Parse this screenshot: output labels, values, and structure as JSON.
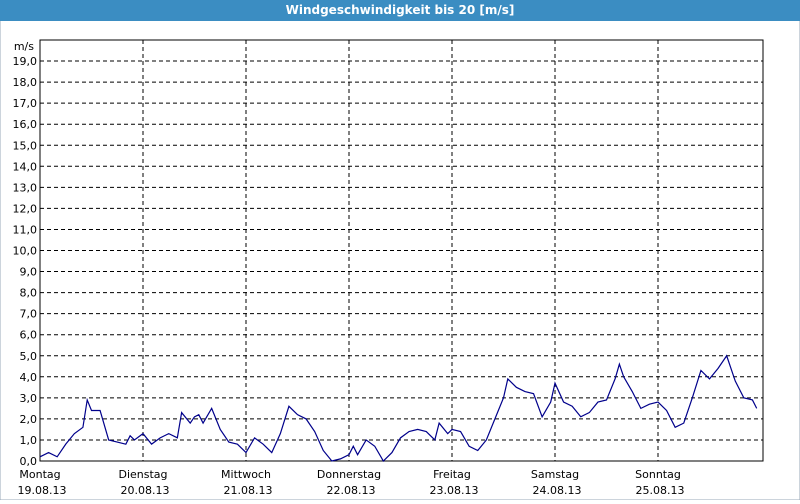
{
  "chart_data": {
    "type": "line",
    "title": "Windgeschwindigkeit bis 20 [m/s]",
    "y_unit": "m/s",
    "xlim": [
      0,
      168
    ],
    "xticks": [
      {
        "value": 0,
        "label": "Montag"
      },
      {
        "value": 24,
        "label": "Dienstag"
      },
      {
        "value": 48,
        "label": "Mittwoch"
      },
      {
        "value": 72,
        "label": "Donnerstag"
      },
      {
        "value": 96,
        "label": "Freitag"
      },
      {
        "value": 120,
        "label": "Samstag"
      },
      {
        "value": 144,
        "label": "Sonntag"
      }
    ],
    "xtick_dates": [
      "19.08.13",
      "20.08.13",
      "21.08.13",
      "22.08.13",
      "23.08.13",
      "24.08.13",
      "25.08.13"
    ],
    "ylim": [
      0,
      20
    ],
    "yticks": [
      {
        "value": 0,
        "label": "0,0"
      },
      {
        "value": 1,
        "label": "1,0"
      },
      {
        "value": 2,
        "label": "2,0"
      },
      {
        "value": 3,
        "label": "3,0"
      },
      {
        "value": 4,
        "label": "4,0"
      },
      {
        "value": 5,
        "label": "5,0"
      },
      {
        "value": 6,
        "label": "6,0"
      },
      {
        "value": 7,
        "label": "7,0"
      },
      {
        "value": 8,
        "label": "8,0"
      },
      {
        "value": 9,
        "label": "9,0"
      },
      {
        "value": 10,
        "label": "10,0"
      },
      {
        "value": 11,
        "label": "11,0"
      },
      {
        "value": 12,
        "label": "12,0"
      },
      {
        "value": 13,
        "label": "13,0"
      },
      {
        "value": 14,
        "label": "14,0"
      },
      {
        "value": 15,
        "label": "15,0"
      },
      {
        "value": 16,
        "label": "16,0"
      },
      {
        "value": 17,
        "label": "17,0"
      },
      {
        "value": 18,
        "label": "18,0"
      },
      {
        "value": 19,
        "label": "19,0"
      }
    ],
    "grid": true,
    "color": "#00008b",
    "x": [
      0,
      2,
      4,
      6,
      8,
      10,
      11,
      12,
      14,
      16,
      18,
      20,
      21,
      22,
      24,
      26,
      28,
      30,
      32,
      33,
      35,
      36,
      37,
      38,
      40,
      42,
      44,
      46,
      48,
      50,
      52,
      54,
      56,
      58,
      60,
      62,
      64,
      66,
      68,
      70,
      72,
      73,
      74,
      76,
      78,
      80,
      82,
      84,
      86,
      88,
      90,
      92,
      93,
      95,
      96,
      98,
      100,
      102,
      104,
      106,
      108,
      109,
      111,
      113,
      115,
      117,
      119,
      120,
      122,
      124,
      126,
      128,
      130,
      132,
      134,
      135,
      136,
      138,
      140,
      142,
      144,
      146,
      148,
      150,
      152,
      154,
      156,
      158,
      160,
      162,
      164,
      166,
      167
    ],
    "values": [
      0.2,
      0.4,
      0.2,
      0.8,
      1.3,
      1.6,
      2.9,
      2.4,
      2.4,
      1.0,
      0.9,
      0.8,
      1.2,
      1.0,
      1.3,
      0.8,
      1.1,
      1.3,
      1.1,
      2.3,
      1.8,
      2.1,
      2.2,
      1.8,
      2.5,
      1.5,
      0.9,
      0.8,
      0.4,
      1.1,
      0.8,
      0.4,
      1.3,
      2.6,
      2.2,
      2.0,
      1.4,
      0.5,
      0.0,
      0.1,
      0.3,
      0.7,
      0.3,
      1.0,
      0.7,
      0.0,
      0.4,
      1.1,
      1.4,
      1.5,
      1.4,
      1.0,
      1.8,
      1.3,
      1.5,
      1.4,
      0.7,
      0.5,
      1.0,
      2.0,
      3.0,
      3.9,
      3.5,
      3.3,
      3.2,
      2.1,
      2.8,
      3.7,
      2.8,
      2.6,
      2.1,
      2.3,
      2.8,
      2.9,
      3.9,
      4.6,
      4.0,
      3.3,
      2.5,
      2.7,
      2.8,
      2.4,
      1.6,
      1.8,
      3.0,
      4.3,
      3.9,
      4.4,
      5.0,
      3.8,
      3.0,
      2.9,
      2.5
    ]
  }
}
